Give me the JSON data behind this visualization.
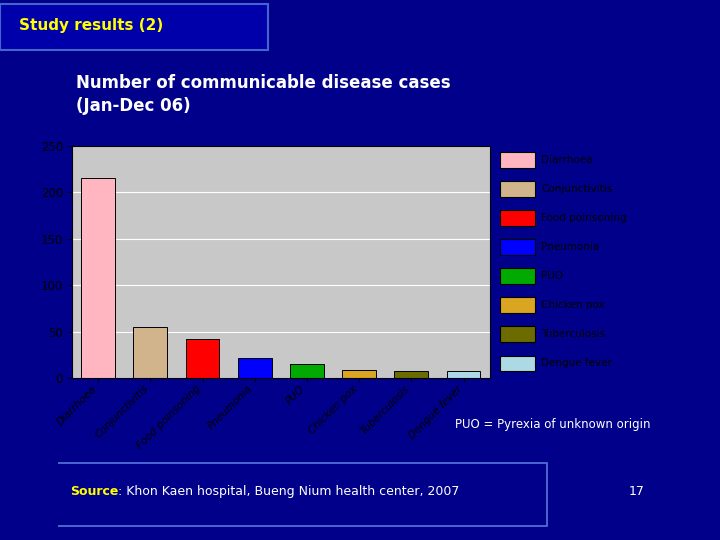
{
  "bg_color": "#00008B",
  "title_box_color": "#0000FF",
  "title_text": "Number of communicable disease cases\n(Jan-Dec 06)",
  "title_text_color": "#FFFFFF",
  "slide_title": "Study results (2)",
  "slide_title_color": "#FFFF00",
  "slide_title_border": "#4466CC",
  "categories": [
    "Diarrhoea",
    "Conjunctivitis",
    "Food poinsoning",
    "Pneumonia",
    "PUO",
    "Chicken pox",
    "Tuberculosis",
    "Dengue fever"
  ],
  "values": [
    215,
    55,
    42,
    22,
    15,
    9,
    8,
    8
  ],
  "bar_colors": [
    "#FFB6C1",
    "#D2B48C",
    "#FF0000",
    "#0000FF",
    "#00AA00",
    "#DAA520",
    "#6B6B00",
    "#ADD8E6"
  ],
  "legend_labels": [
    "Diarrhoea",
    "Conjunctivitis",
    "Food poinsoning",
    "Pneumonia",
    "PUO",
    "Chicken pox",
    "Tuberculosis",
    "Dengue fever"
  ],
  "ylim": [
    0,
    250
  ],
  "yticks": [
    0,
    50,
    100,
    150,
    200,
    250
  ],
  "chart_bg": "#C8C8C8",
  "puo_note": "PUO = Pyrexia of unknown origin",
  "source_label": "Source",
  "source_rest": ": Khon Kaen hospital, Bueng Nium health center, 2007",
  "page_num": "17"
}
